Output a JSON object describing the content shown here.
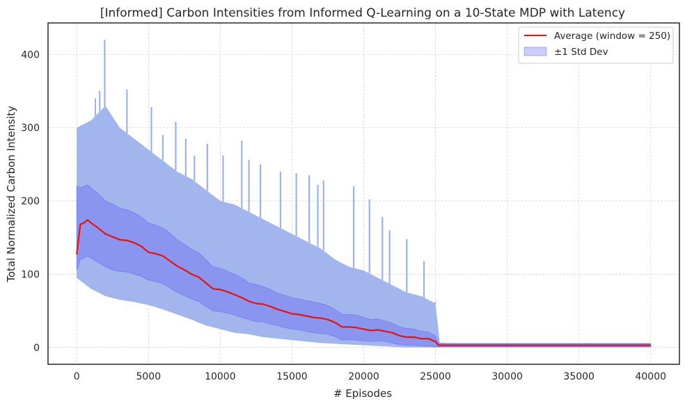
{
  "chart_data": {
    "type": "line",
    "title": "[Informed] Carbon Intensities from Informed Q-Learning on a 10-State MDP with Latency",
    "xlabel": "# Episodes",
    "ylabel": "Total Normalized Carbon Intensity",
    "xlim": [
      -2000,
      42000
    ],
    "ylim": [
      -23,
      443
    ],
    "xticks": [
      0,
      5000,
      10000,
      15000,
      20000,
      25000,
      30000,
      35000,
      40000
    ],
    "yticks": [
      0,
      100,
      200,
      300,
      400
    ],
    "grid": true,
    "legend_position": "top-right",
    "series": [
      {
        "name": "Average (window = 250)",
        "color": "#e8120c",
        "x": [
          0,
          250,
          500,
          750,
          1000,
          1500,
          2000,
          2500,
          3000,
          3500,
          4000,
          4500,
          5000,
          5500,
          6000,
          6500,
          7000,
          7500,
          8000,
          8500,
          9000,
          9500,
          10000,
          10500,
          11000,
          11500,
          12000,
          12500,
          13000,
          13500,
          14000,
          14500,
          15000,
          15500,
          16000,
          16500,
          17000,
          17500,
          18000,
          18500,
          19000,
          19500,
          20000,
          20500,
          21000,
          21500,
          22000,
          22500,
          23000,
          23500,
          24000,
          24500,
          25000,
          25200,
          26000,
          30000,
          35000,
          40000
        ],
        "y": [
          127,
          168,
          170,
          174,
          170,
          163,
          155,
          151,
          147,
          146,
          143,
          138,
          130,
          128,
          125,
          118,
          111,
          106,
          100,
          96,
          88,
          80,
          79,
          76,
          72,
          68,
          63,
          60,
          59,
          56,
          52,
          49,
          46,
          45,
          43,
          41,
          40,
          38,
          34,
          28,
          28,
          27,
          25,
          23,
          24,
          22,
          20,
          16,
          14,
          14,
          12,
          12,
          8,
          3,
          3,
          3,
          3,
          3
        ]
      }
    ],
    "bands": [
      {
        "name": "±1 Std Dev",
        "color": "#6a6ff0",
        "x": [
          0,
          250,
          500,
          750,
          1000,
          1500,
          2000,
          2500,
          3000,
          3500,
          4000,
          4500,
          5000,
          5500,
          6000,
          6500,
          7000,
          7500,
          8000,
          8500,
          9000,
          9500,
          10000,
          10500,
          11000,
          11500,
          12000,
          12500,
          13000,
          13500,
          14000,
          14500,
          15000,
          15500,
          16000,
          16500,
          17000,
          17500,
          18000,
          18500,
          19000,
          19500,
          20000,
          20500,
          21000,
          21500,
          22000,
          22500,
          23000,
          23500,
          24000,
          24500,
          25000,
          25200,
          26000,
          30000,
          35000,
          40000
        ],
        "upper": [
          220,
          218,
          220,
          222,
          218,
          210,
          200,
          196,
          190,
          188,
          184,
          178,
          170,
          167,
          163,
          156,
          147,
          141,
          134,
          129,
          120,
          110,
          108,
          104,
          100,
          95,
          88,
          86,
          83,
          79,
          74,
          71,
          68,
          66,
          64,
          62,
          60,
          57,
          52,
          45,
          45,
          44,
          41,
          38,
          39,
          36,
          33,
          28,
          26,
          25,
          22,
          21,
          16,
          6,
          5,
          5,
          5,
          5
        ],
        "lower": [
          105,
          120,
          122,
          125,
          122,
          116,
          110,
          106,
          104,
          103,
          100,
          97,
          92,
          90,
          87,
          81,
          75,
          71,
          66,
          63,
          56,
          50,
          49,
          47,
          44,
          41,
          38,
          35,
          35,
          32,
          30,
          27,
          25,
          24,
          22,
          20,
          19,
          18,
          15,
          10,
          11,
          10,
          9,
          8,
          9,
          8,
          6,
          4,
          3,
          3,
          2,
          2,
          1,
          1,
          1,
          1,
          1,
          1
        ]
      }
    ],
    "raw": {
      "color": "#9db1ec",
      "x": [
        0,
        1000,
        2000,
        3000,
        4000,
        5000,
        6000,
        7000,
        8000,
        9000,
        10000,
        11000,
        12000,
        13000,
        14000,
        15000,
        16000,
        17000,
        18000,
        19000,
        20000,
        21000,
        22000,
        23000,
        24000,
        25000,
        25300,
        26000,
        30000,
        35000,
        40000
      ],
      "upper": [
        300,
        310,
        330,
        300,
        285,
        270,
        255,
        240,
        230,
        215,
        200,
        195,
        185,
        175,
        165,
        155,
        145,
        135,
        120,
        110,
        105,
        95,
        85,
        75,
        70,
        60,
        6,
        6,
        6,
        6,
        6
      ],
      "lower": [
        95,
        80,
        70,
        65,
        62,
        58,
        52,
        45,
        38,
        30,
        25,
        20,
        18,
        14,
        12,
        10,
        8,
        6,
        5,
        4,
        3,
        2,
        1,
        0,
        0,
        0,
        0,
        0,
        0,
        0,
        0
      ],
      "peaks": [
        [
          300,
          296
        ],
        [
          1300,
          340
        ],
        [
          1600,
          350
        ],
        [
          1950,
          420
        ],
        [
          3500,
          352
        ],
        [
          5200,
          328
        ],
        [
          6000,
          290
        ],
        [
          6900,
          308
        ],
        [
          7600,
          285
        ],
        [
          8200,
          262
        ],
        [
          9100,
          278
        ],
        [
          10200,
          262
        ],
        [
          11500,
          282
        ],
        [
          12000,
          256
        ],
        [
          12800,
          250
        ],
        [
          14200,
          240
        ],
        [
          15300,
          238
        ],
        [
          16200,
          235
        ],
        [
          16800,
          222
        ],
        [
          17200,
          228
        ],
        [
          19300,
          220
        ],
        [
          20400,
          202
        ],
        [
          21300,
          178
        ],
        [
          21800,
          160
        ],
        [
          23000,
          148
        ],
        [
          24200,
          118
        ],
        [
          25000,
          62
        ]
      ]
    }
  }
}
